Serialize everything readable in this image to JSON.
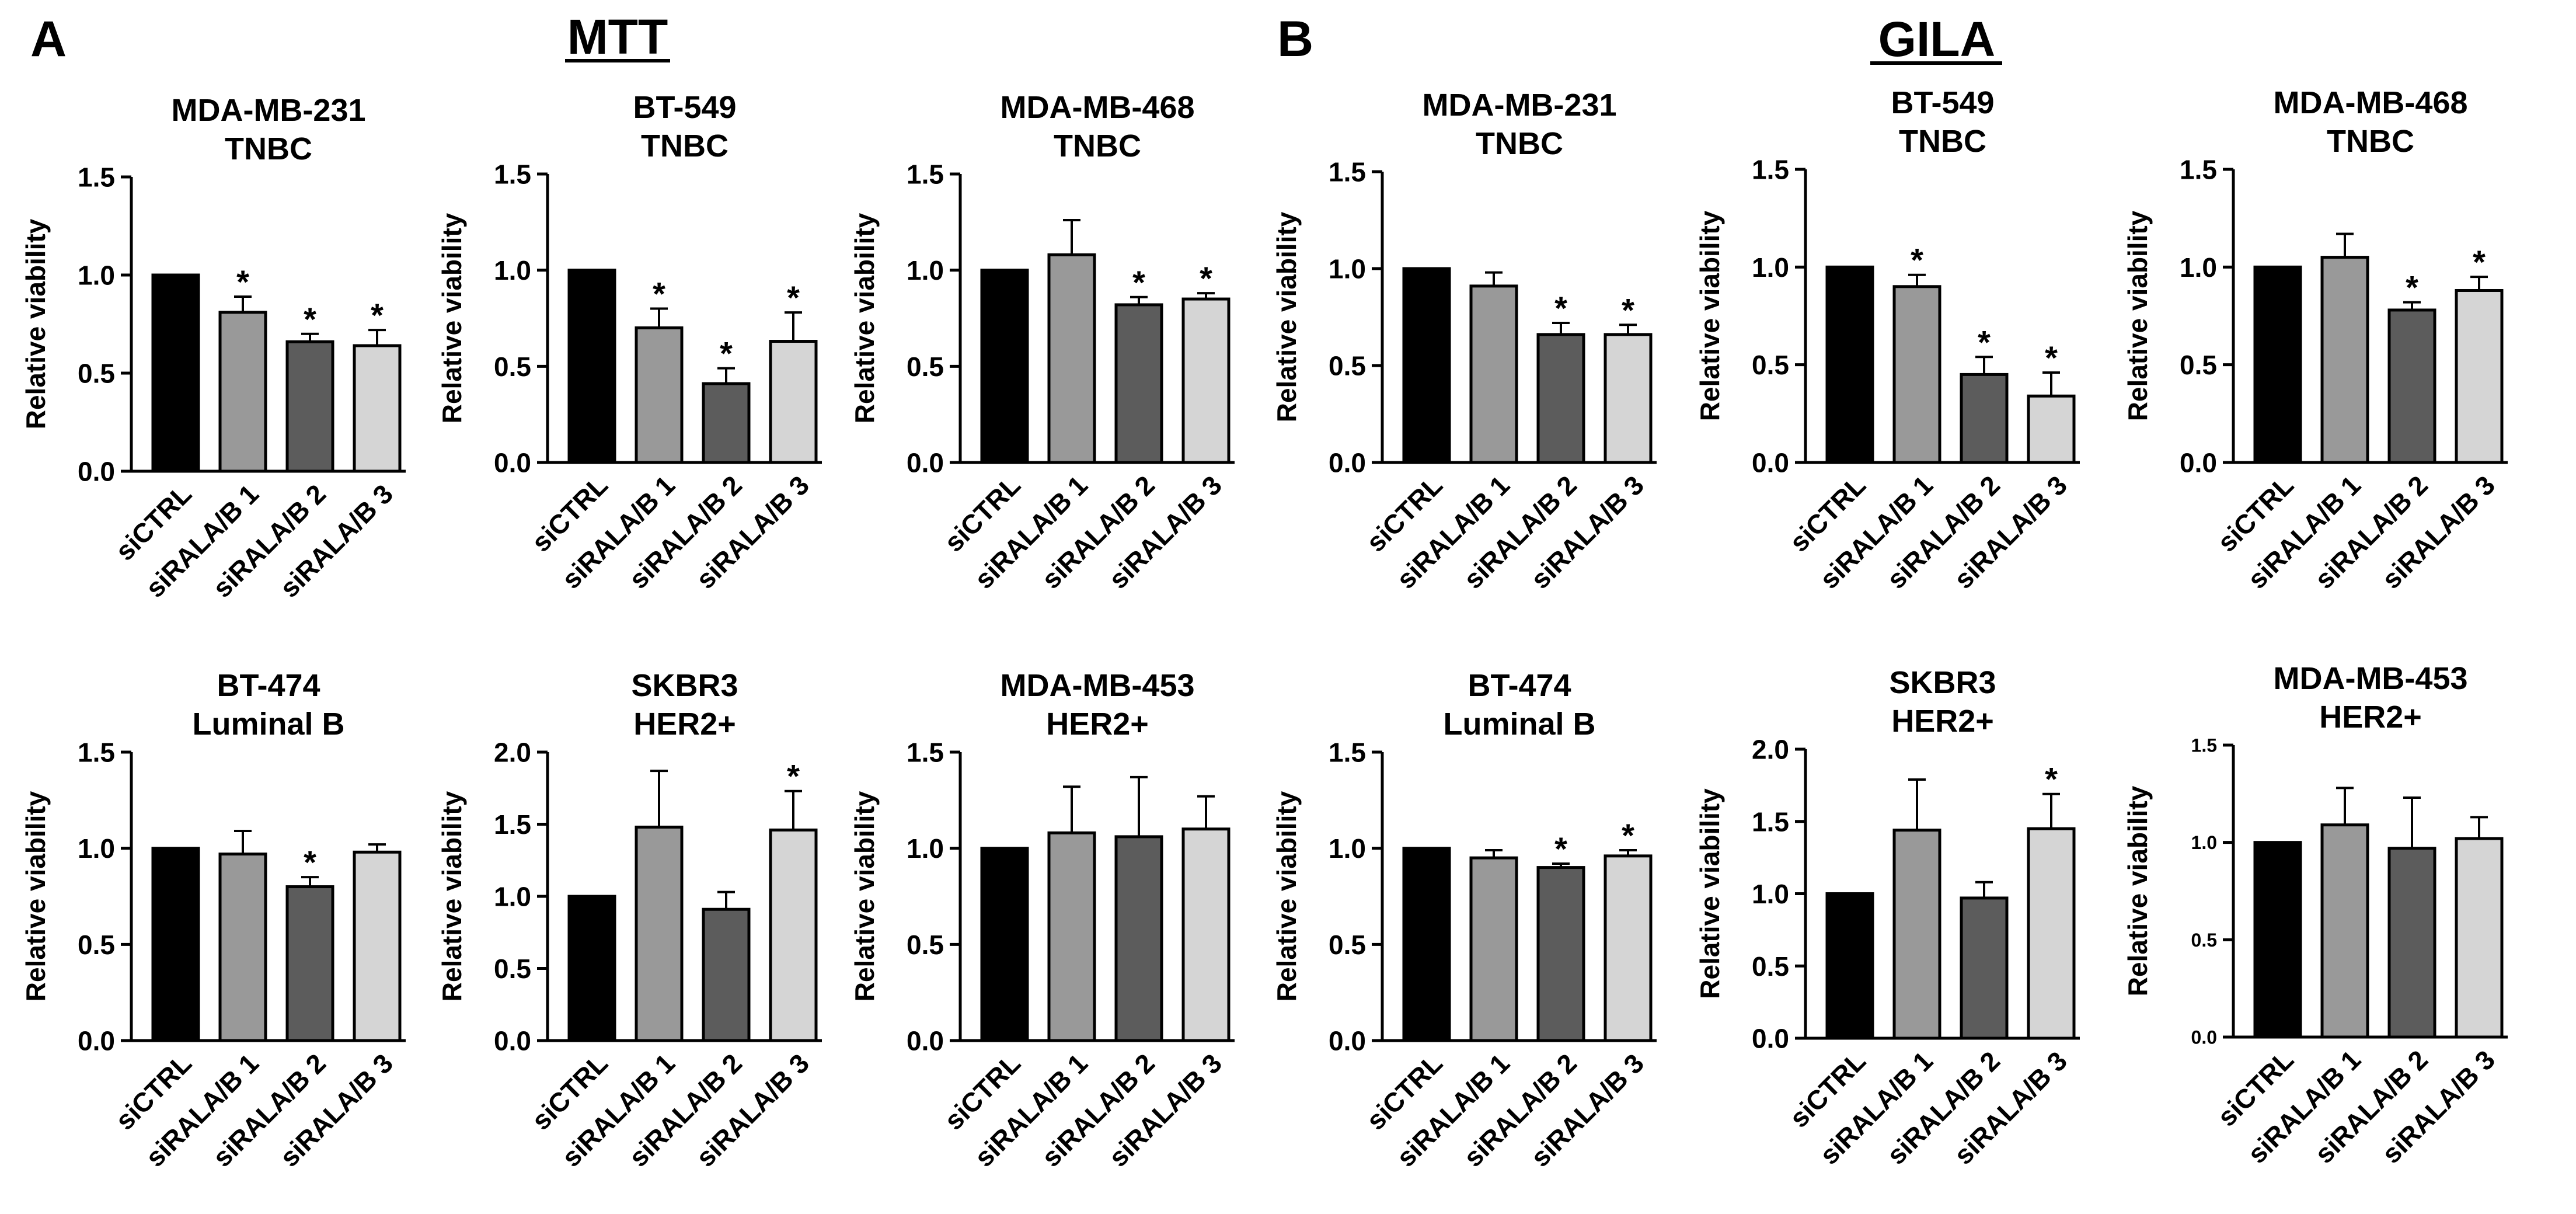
{
  "figure": {
    "panel_a": {
      "letter": "A",
      "heading": "MTT"
    },
    "panel_b": {
      "letter": "B",
      "heading": "GILA"
    }
  },
  "chart_data": [
    {
      "id": "mtt-mdamb231",
      "type": "bar",
      "panel": "MTT",
      "title": [
        "MDA-MB-231",
        "TNBC"
      ],
      "ylabel": "Relative viability",
      "categories": [
        "siCTRL",
        "siRALA/B 1",
        "siRALA/B 2",
        "siRALA/B 3"
      ],
      "values": [
        1.0,
        0.81,
        0.66,
        0.64
      ],
      "errors": [
        0.0,
        0.08,
        0.04,
        0.08
      ],
      "significance": [
        "",
        "*",
        "*",
        "*"
      ],
      "ylim": [
        0,
        1.5
      ],
      "yticks": [
        "0.0",
        "0.5",
        "1.0",
        "1.5"
      ],
      "colors": [
        "#000000",
        "#999999",
        "#5c5c5c",
        "#d5d5d5"
      ]
    },
    {
      "id": "mtt-bt549",
      "type": "bar",
      "panel": "MTT",
      "title": [
        "BT-549",
        "TNBC"
      ],
      "ylabel": "Relative viability",
      "categories": [
        "siCTRL",
        "siRALA/B 1",
        "siRALA/B 2",
        "siRALA/B 3"
      ],
      "values": [
        1.0,
        0.7,
        0.41,
        0.63
      ],
      "errors": [
        0.0,
        0.1,
        0.08,
        0.15
      ],
      "significance": [
        "",
        "*",
        "*",
        "*"
      ],
      "ylim": [
        0,
        1.5
      ],
      "yticks": [
        "0.0",
        "0.5",
        "1.0",
        "1.5"
      ],
      "colors": [
        "#000000",
        "#999999",
        "#5c5c5c",
        "#d5d5d5"
      ]
    },
    {
      "id": "mtt-mdamb468",
      "type": "bar",
      "panel": "MTT",
      "title": [
        "MDA-MB-468",
        "TNBC"
      ],
      "ylabel": "Relative viability",
      "categories": [
        "siCTRL",
        "siRALA/B 1",
        "siRALA/B 2",
        "siRALA/B 3"
      ],
      "values": [
        1.0,
        1.08,
        0.82,
        0.85
      ],
      "errors": [
        0.0,
        0.18,
        0.04,
        0.03
      ],
      "significance": [
        "",
        "",
        "*",
        "*"
      ],
      "ylim": [
        0,
        1.5
      ],
      "yticks": [
        "0.0",
        "0.5",
        "1.0",
        "1.5"
      ],
      "colors": [
        "#000000",
        "#999999",
        "#5c5c5c",
        "#d5d5d5"
      ]
    },
    {
      "id": "gila-mdamb231",
      "type": "bar",
      "panel": "GILA",
      "title": [
        "MDA-MB-231",
        "TNBC"
      ],
      "ylabel": "Relative viability",
      "categories": [
        "siCTRL",
        "siRALA/B 1",
        "siRALA/B 2",
        "siRALA/B 3"
      ],
      "values": [
        1.0,
        0.91,
        0.66,
        0.66
      ],
      "errors": [
        0.0,
        0.07,
        0.06,
        0.05
      ],
      "significance": [
        "",
        "",
        "*",
        "*"
      ],
      "ylim": [
        0,
        1.5
      ],
      "yticks": [
        "0.0",
        "0.5",
        "1.0",
        "1.5"
      ],
      "colors": [
        "#000000",
        "#999999",
        "#5c5c5c",
        "#d5d5d5"
      ]
    },
    {
      "id": "gila-bt549",
      "type": "bar",
      "panel": "GILA",
      "title": [
        "BT-549",
        "TNBC"
      ],
      "ylabel": "Relative viability",
      "categories": [
        "siCTRL",
        "siRALA/B 1",
        "siRALA/B 2",
        "siRALA/B 3"
      ],
      "values": [
        1.0,
        0.9,
        0.45,
        0.34
      ],
      "errors": [
        0.0,
        0.06,
        0.09,
        0.12
      ],
      "significance": [
        "",
        "*",
        "*",
        "*"
      ],
      "ylim": [
        0,
        1.5
      ],
      "yticks": [
        "0.0",
        "0.5",
        "1.0",
        "1.5"
      ],
      "colors": [
        "#000000",
        "#999999",
        "#5c5c5c",
        "#d5d5d5"
      ]
    },
    {
      "id": "gila-mdamb468",
      "type": "bar",
      "panel": "GILA",
      "title": [
        "MDA-MB-468",
        "TNBC"
      ],
      "ylabel": "Relative viability",
      "categories": [
        "siCTRL",
        "siRALA/B 1",
        "siRALA/B 2",
        "siRALA/B 3"
      ],
      "values": [
        1.0,
        1.05,
        0.78,
        0.88
      ],
      "errors": [
        0.0,
        0.12,
        0.04,
        0.07
      ],
      "significance": [
        "",
        "",
        "*",
        "*"
      ],
      "ylim": [
        0,
        1.5
      ],
      "yticks": [
        "0.0",
        "0.5",
        "1.0",
        "1.5"
      ],
      "colors": [
        "#000000",
        "#999999",
        "#5c5c5c",
        "#d5d5d5"
      ]
    },
    {
      "id": "mtt-bt474",
      "type": "bar",
      "panel": "MTT",
      "title": [
        "BT-474",
        "Luminal B"
      ],
      "ylabel": "Relative viability",
      "categories": [
        "siCTRL",
        "siRALA/B 1",
        "siRALA/B 2",
        "siRALA/B 3"
      ],
      "values": [
        1.0,
        0.97,
        0.8,
        0.98
      ],
      "errors": [
        0.0,
        0.12,
        0.05,
        0.04
      ],
      "significance": [
        "",
        "",
        "*",
        ""
      ],
      "ylim": [
        0,
        1.5
      ],
      "yticks": [
        "0.0",
        "0.5",
        "1.0",
        "1.5"
      ],
      "colors": [
        "#000000",
        "#999999",
        "#5c5c5c",
        "#d5d5d5"
      ]
    },
    {
      "id": "mtt-skbr3",
      "type": "bar",
      "panel": "MTT",
      "title": [
        "SKBR3",
        "HER2+"
      ],
      "ylabel": "Relative viability",
      "categories": [
        "siCTRL",
        "siRALA/B 1",
        "siRALA/B 2",
        "siRALA/B 3"
      ],
      "values": [
        1.0,
        1.48,
        0.91,
        1.46
      ],
      "errors": [
        0.0,
        0.39,
        0.12,
        0.27
      ],
      "significance": [
        "",
        "",
        "",
        "*"
      ],
      "ylim": [
        0,
        2.0
      ],
      "yticks": [
        "0.0",
        "0.5",
        "1.0",
        "1.5",
        "2.0"
      ],
      "colors": [
        "#000000",
        "#999999",
        "#5c5c5c",
        "#d5d5d5"
      ]
    },
    {
      "id": "mtt-mdamb453",
      "type": "bar",
      "panel": "MTT",
      "title": [
        "MDA-MB-453",
        "HER2+"
      ],
      "ylabel": "Relative viability",
      "categories": [
        "siCTRL",
        "siRALA/B 1",
        "siRALA/B 2",
        "siRALA/B 3"
      ],
      "values": [
        1.0,
        1.08,
        1.06,
        1.1
      ],
      "errors": [
        0.0,
        0.24,
        0.31,
        0.17
      ],
      "significance": [
        "",
        "",
        "",
        ""
      ],
      "ylim": [
        0,
        1.5
      ],
      "yticks": [
        "0.0",
        "0.5",
        "1.0",
        "1.5"
      ],
      "colors": [
        "#000000",
        "#999999",
        "#5c5c5c",
        "#d5d5d5"
      ]
    },
    {
      "id": "gila-bt474",
      "type": "bar",
      "panel": "GILA",
      "title": [
        "BT-474",
        "Luminal B"
      ],
      "ylabel": "Relative viability",
      "categories": [
        "siCTRL",
        "siRALA/B 1",
        "siRALA/B 2",
        "siRALA/B 3"
      ],
      "values": [
        1.0,
        0.95,
        0.9,
        0.96
      ],
      "errors": [
        0.0,
        0.04,
        0.02,
        0.03
      ],
      "significance": [
        "",
        "",
        "*",
        "*"
      ],
      "ylim": [
        0,
        1.5
      ],
      "yticks": [
        "0.0",
        "0.5",
        "1.0",
        "1.5"
      ],
      "colors": [
        "#000000",
        "#999999",
        "#5c5c5c",
        "#d5d5d5"
      ]
    },
    {
      "id": "gila-skbr3",
      "type": "bar",
      "panel": "GILA",
      "title": [
        "SKBR3",
        "HER2+"
      ],
      "ylabel": "Relative viability",
      "categories": [
        "siCTRL",
        "siRALA/B 1",
        "siRALA/B 2",
        "siRALA/B 3"
      ],
      "values": [
        1.0,
        1.44,
        0.97,
        1.45
      ],
      "errors": [
        0.0,
        0.35,
        0.11,
        0.24
      ],
      "significance": [
        "",
        "",
        "",
        "*"
      ],
      "ylim": [
        0,
        2.0
      ],
      "yticks": [
        "0.0",
        "0.5",
        "1.0",
        "1.5",
        "2.0"
      ],
      "colors": [
        "#000000",
        "#999999",
        "#5c5c5c",
        "#d5d5d5"
      ]
    },
    {
      "id": "gila-mdamb453",
      "type": "bar",
      "panel": "GILA",
      "title": [
        "MDA-MB-453",
        "HER2+"
      ],
      "ylabel": "Relative viability",
      "categories": [
        "siCTRL",
        "siRALA/B 1",
        "siRALA/B 2",
        "siRALA/B 3"
      ],
      "values": [
        1.0,
        1.09,
        0.97,
        1.02
      ],
      "errors": [
        0.0,
        0.19,
        0.26,
        0.11
      ],
      "significance": [
        "",
        "",
        "",
        ""
      ],
      "ylim": [
        0,
        1.5
      ],
      "yticks": [
        "0.0",
        "0.5",
        "1.0",
        "1.5"
      ],
      "colors": [
        "#000000",
        "#999999",
        "#5c5c5c",
        "#d5d5d5"
      ]
    }
  ]
}
